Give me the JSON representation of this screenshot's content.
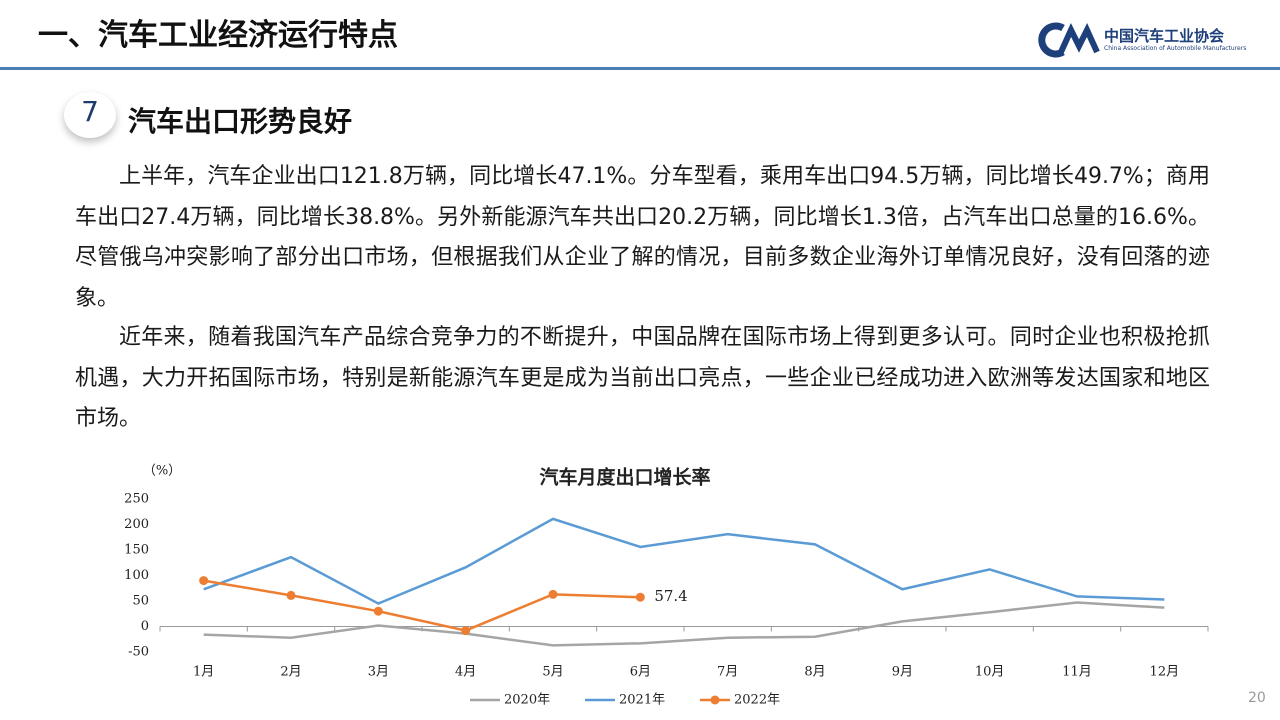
{
  "header": {
    "title": "一、汽车工业经济运行特点",
    "logo_cn": "中国汽车工业协会",
    "logo_en": "China Association of Automobile Manufacturers"
  },
  "section": {
    "number": "7",
    "title": "汽车出口形势良好"
  },
  "paragraphs": [
    "上半年，汽车企业出口121.8万辆，同比增长47.1%。分车型看，乘用车出口94.5万辆，同比增长49.7%；商用车出口27.4万辆，同比增长38.8%。另外新能源汽车共出口20.2万辆，同比增长1.3倍，占汽车出口总量的16.6%。尽管俄乌冲突影响了部分出口市场，但根据我们从企业了解的情况，目前多数企业海外订单情况良好，没有回落的迹象。",
    "近年来，随着我国汽车产品综合竞争力的不断提升，中国品牌在国际市场上得到更多认可。同时企业也积极抢抓机遇，大力开拓国际市场，特别是新能源汽车更是成为当前出口亮点，一些企业已经成功进入欧洲等发达国家和地区市场。"
  ],
  "chart_data": {
    "type": "line",
    "title": "汽车月度出口增长率",
    "y_label": "（%）",
    "categories": [
      "1月",
      "2月",
      "3月",
      "4月",
      "5月",
      "6月",
      "7月",
      "8月",
      "9月",
      "10月",
      "11月",
      "12月"
    ],
    "series": [
      {
        "name": "2020年",
        "color": "#a5a5a5",
        "values": [
          -16,
          -22,
          2,
          -14,
          -37,
          -33,
          -22,
          -20,
          10,
          28,
          47,
          37
        ]
      },
      {
        "name": "2021年",
        "color": "#5b9bd5",
        "values": [
          73,
          136,
          45,
          116,
          211,
          156,
          181,
          161,
          73,
          112,
          59,
          53
        ]
      },
      {
        "name": "2022年",
        "color": "#ed7d31",
        "markers": true,
        "values": [
          90,
          61,
          30,
          -8,
          63,
          57.4,
          null,
          null,
          null,
          null,
          null,
          null
        ]
      }
    ],
    "ylim": [
      -50,
      250
    ],
    "yticks": [
      -50,
      0,
      50,
      100,
      150,
      200,
      250
    ],
    "grid": false
  },
  "page_number": "20"
}
